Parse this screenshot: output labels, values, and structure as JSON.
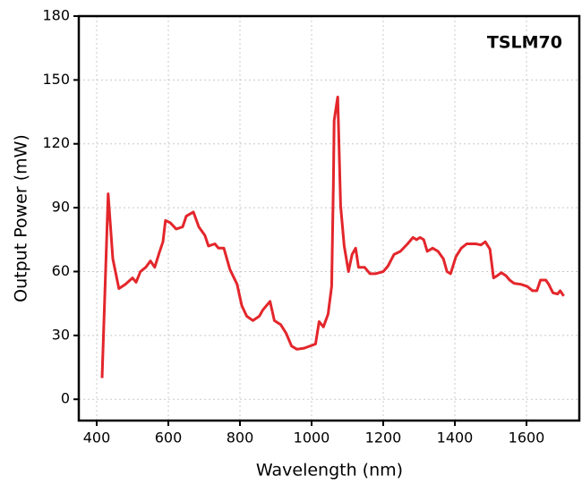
{
  "chart_data": {
    "type": "line",
    "annotation": "TSLM70",
    "x_label": "Wavelength (nm)",
    "y_label": "Output Power (mW)",
    "xlim": [
      350,
      1750
    ],
    "ylim": [
      -10,
      180
    ],
    "xticks": [
      400,
      600,
      800,
      1000,
      1200,
      1400,
      1600
    ],
    "yticks": [
      0,
      30,
      60,
      90,
      120,
      150,
      180
    ],
    "grid": true,
    "series": [
      {
        "color": "#e3262b",
        "x": [
          415,
          432,
          445,
          462,
          480,
          500,
          510,
          522,
          537,
          550,
          562,
          575,
          585,
          592,
          605,
          622,
          640,
          650,
          670,
          685,
          702,
          712,
          730,
          740,
          755,
          772,
          792,
          805,
          819,
          836,
          854,
          864,
          884,
          896,
          914,
          929,
          944,
          959,
          979,
          1004,
          1011,
          1021,
          1033,
          1046,
          1056,
          1061,
          1063,
          1071,
          1073,
          1081,
          1091,
          1103,
          1113,
          1123,
          1131,
          1148,
          1163,
          1178,
          1200,
          1213,
          1230,
          1248,
          1268,
          1283,
          1293,
          1303,
          1313,
          1323,
          1338,
          1353,
          1368,
          1378,
          1388,
          1403,
          1418,
          1433,
          1458,
          1473,
          1485,
          1498,
          1508,
          1518,
          1530,
          1543,
          1553,
          1565,
          1584,
          1602,
          1617,
          1629,
          1639,
          1654,
          1662,
          1674,
          1687,
          1694,
          1704
        ],
        "values": [
          10,
          96.5,
          66,
          52,
          54,
          57,
          55,
          60,
          62,
          65,
          62,
          69,
          74,
          84,
          83,
          80,
          81,
          86,
          88,
          81,
          77,
          72,
          73,
          71,
          71,
          61,
          54,
          44,
          39,
          37,
          39,
          42,
          46,
          37,
          35,
          31,
          25,
          23.5,
          24,
          25.5,
          26,
          36.5,
          34,
          40,
          53,
          103,
          131,
          140,
          142,
          91,
          72,
          60,
          68,
          71,
          62,
          62,
          59,
          59,
          60,
          62.5,
          68,
          69.5,
          73,
          76,
          75,
          76,
          75,
          69.5,
          71,
          69.5,
          66,
          60,
          59,
          67,
          71,
          73,
          73,
          72.5,
          74,
          70.5,
          57,
          58,
          59.5,
          58,
          56,
          54.5,
          54,
          53,
          51,
          51,
          56,
          56,
          54,
          50,
          49.5,
          51,
          48.5
        ]
      }
    ]
  }
}
